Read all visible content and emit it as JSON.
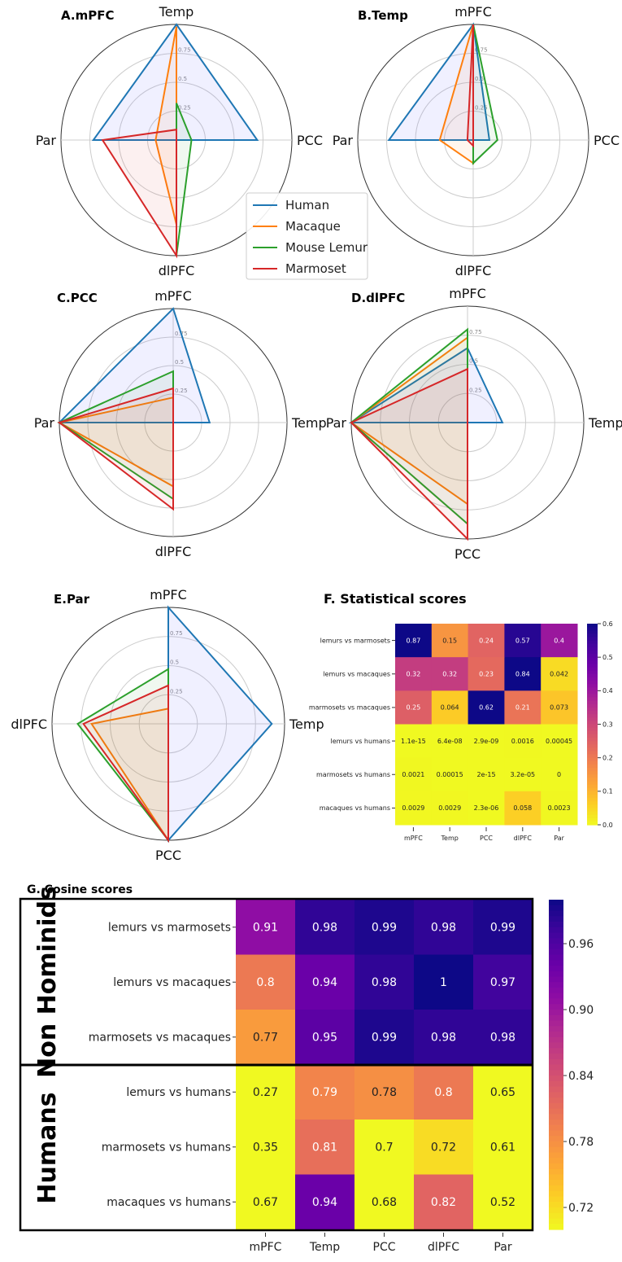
{
  "species": [
    {
      "name": "Human",
      "color": "#1f77b4"
    },
    {
      "name": "Macaque",
      "color": "#ff7f0e"
    },
    {
      "name": "Mouse Lemur",
      "color": "#2ca02c"
    },
    {
      "name": "Marmoset",
      "color": "#d62728"
    }
  ],
  "chart_data": [
    {
      "type": "radar",
      "title": "A.mPFC",
      "axes": [
        "Temp",
        "PCC",
        "dlPFC",
        "Par"
      ],
      "ring_labels": [
        "0.25",
        "0.5",
        "0.75"
      ],
      "range": [
        0,
        1
      ],
      "series": [
        {
          "name": "Human",
          "values": [
            1.0,
            0.7,
            0.0,
            0.72
          ]
        },
        {
          "name": "Macaque",
          "values": [
            0.98,
            0.0,
            0.73,
            0.18
          ]
        },
        {
          "name": "Mouse Lemur",
          "values": [
            0.32,
            0.13,
            1.0,
            0.0
          ]
        },
        {
          "name": "Marmoset",
          "values": [
            0.09,
            0.0,
            1.0,
            0.64
          ]
        }
      ]
    },
    {
      "type": "radar",
      "title": "B.Temp",
      "axes": [
        "mPFC",
        "PCC",
        "dlPFC",
        "Par"
      ],
      "ring_labels": [
        "0.25",
        "0.5",
        "0.75"
      ],
      "range": [
        0,
        1
      ],
      "series": [
        {
          "name": "Human",
          "values": [
            1.0,
            0.14,
            0.0,
            0.73
          ]
        },
        {
          "name": "Macaque",
          "values": [
            1.0,
            0.0,
            0.2,
            0.29
          ]
        },
        {
          "name": "Mouse Lemur",
          "values": [
            1.0,
            0.21,
            0.2,
            0.0
          ]
        },
        {
          "name": "Marmoset",
          "values": [
            1.0,
            0.0,
            0.05,
            0.05
          ]
        }
      ]
    },
    {
      "type": "radar",
      "title": "C.PCC",
      "axes": [
        "mPFC",
        "Temp",
        "dlPFC",
        "Par"
      ],
      "ring_labels": [
        "0.25",
        "0.5",
        "0.75"
      ],
      "range": [
        0,
        1
      ],
      "series": [
        {
          "name": "Human",
          "values": [
            1.0,
            0.32,
            0.0,
            1.0
          ]
        },
        {
          "name": "Macaque",
          "values": [
            0.22,
            0.0,
            0.56,
            1.0
          ]
        },
        {
          "name": "Mouse Lemur",
          "values": [
            0.45,
            0.0,
            0.67,
            1.0
          ]
        },
        {
          "name": "Marmoset",
          "values": [
            0.3,
            0.0,
            0.76,
            1.0
          ]
        }
      ]
    },
    {
      "type": "radar",
      "title": "D.dlPFC",
      "axes": [
        "mPFC",
        "Temp",
        "PCC",
        "Par"
      ],
      "ring_labels": [
        "0.25",
        "0.5",
        "0.75"
      ],
      "range": [
        0,
        1
      ],
      "series": [
        {
          "name": "Human",
          "values": [
            0.64,
            0.3,
            0.0,
            1.0
          ]
        },
        {
          "name": "Macaque",
          "values": [
            0.73,
            0.0,
            0.7,
            1.0
          ]
        },
        {
          "name": "Mouse Lemur",
          "values": [
            0.8,
            0.0,
            0.87,
            1.0
          ]
        },
        {
          "name": "Marmoset",
          "values": [
            0.46,
            0.0,
            1.0,
            1.0
          ]
        }
      ]
    },
    {
      "type": "radar",
      "title": "E.Par",
      "axes": [
        "mPFC",
        "Temp",
        "PCC",
        "dlPFC"
      ],
      "ring_labels": [
        "0.25",
        "0.5",
        "0.75"
      ],
      "range": [
        0,
        1
      ],
      "series": [
        {
          "name": "Human",
          "values": [
            1.0,
            0.89,
            1.0,
            0.0
          ]
        },
        {
          "name": "Macaque",
          "values": [
            0.13,
            0.0,
            1.0,
            0.66
          ]
        },
        {
          "name": "Mouse Lemur",
          "values": [
            0.47,
            0.0,
            1.0,
            0.78
          ]
        },
        {
          "name": "Marmoset",
          "values": [
            0.33,
            0.0,
            1.0,
            0.73
          ]
        }
      ]
    },
    {
      "type": "heatmap",
      "title": "F. Statistical scores",
      "rows": [
        "lemurs vs marmosets",
        "lemurs vs macaques",
        "marmosets vs macaques",
        "lemurs vs humans",
        "marmosets vs humans",
        "macaques vs humans"
      ],
      "columns": [
        "mPFC",
        "Temp",
        "PCC",
        "dlPFC",
        "Par"
      ],
      "values": [
        [
          0.87,
          0.15,
          0.24,
          0.57,
          0.4
        ],
        [
          0.32,
          0.32,
          0.23,
          0.84,
          0.042
        ],
        [
          0.25,
          0.064,
          0.62,
          0.21,
          0.073
        ],
        [
          1.1e-15,
          6.4e-08,
          2.9e-09,
          0.0016,
          0.00045
        ],
        [
          0.0021,
          0.00015,
          2e-15,
          3.2e-05,
          0
        ],
        [
          0.0029,
          0.0029,
          2.3e-06,
          0.058,
          0.0023
        ]
      ],
      "labels": [
        [
          "0.87",
          "0.15",
          "0.24",
          "0.57",
          "0.4"
        ],
        [
          "0.32",
          "0.32",
          "0.23",
          "0.84",
          "0.042"
        ],
        [
          "0.25",
          "0.064",
          "0.62",
          "0.21",
          "0.073"
        ],
        [
          "1.1e-15",
          "6.4e-08",
          "2.9e-09",
          "0.0016",
          "0.00045"
        ],
        [
          "0.0021",
          "0.00015",
          "2e-15",
          "3.2e-05",
          "0"
        ],
        [
          "0.0029",
          "0.0029",
          "2.3e-06",
          "0.058",
          "0.0023"
        ]
      ],
      "colormap": "plasma_r",
      "vrange": [
        0,
        0.6
      ],
      "colorbar_ticks": [
        "0.0",
        "0.1",
        "0.2",
        "0.3",
        "0.4",
        "0.5",
        "0.6"
      ],
      "colorbar_tick_values": [
        0,
        0.1,
        0.2,
        0.3,
        0.4,
        0.5,
        0.6
      ]
    },
    {
      "type": "heatmap",
      "title": "G. Cosine scores",
      "groups": [
        {
          "label": "Non Hominids",
          "rows": [
            0,
            1,
            2
          ]
        },
        {
          "label": "Humans",
          "rows": [
            3,
            4,
            5
          ]
        }
      ],
      "rows": [
        "lemurs vs marmosets",
        "lemurs vs macaques",
        "marmosets vs macaques",
        "lemurs vs humans",
        "marmosets vs humans",
        "macaques vs humans"
      ],
      "columns": [
        "mPFC",
        "Temp",
        "PCC",
        "dlPFC",
        "Par"
      ],
      "values": [
        [
          0.91,
          0.98,
          0.99,
          0.98,
          0.99
        ],
        [
          0.8,
          0.94,
          0.98,
          1,
          0.97
        ],
        [
          0.77,
          0.95,
          0.99,
          0.98,
          0.98
        ],
        [
          0.27,
          0.79,
          0.78,
          0.8,
          0.65
        ],
        [
          0.35,
          0.81,
          0.7,
          0.72,
          0.61
        ],
        [
          0.67,
          0.94,
          0.68,
          0.82,
          0.52
        ]
      ],
      "labels": [
        [
          "0.91",
          "0.98",
          "0.99",
          "0.98",
          "0.99"
        ],
        [
          "0.8",
          "0.94",
          "0.98",
          "1",
          "0.97"
        ],
        [
          "0.77",
          "0.95",
          "0.99",
          "0.98",
          "0.98"
        ],
        [
          "0.27",
          "0.79",
          "0.78",
          "0.8",
          "0.65"
        ],
        [
          "0.35",
          "0.81",
          "0.7",
          "0.72",
          "0.61"
        ],
        [
          "0.67",
          "0.94",
          "0.68",
          "0.82",
          "0.52"
        ]
      ],
      "colormap": "plasma_r",
      "vrange": [
        0.7,
        1.0
      ],
      "colorbar_ticks": [
        "0.72",
        "0.78",
        "0.84",
        "0.90",
        "0.96"
      ],
      "colorbar_tick_values": [
        0.72,
        0.78,
        0.84,
        0.9,
        0.96
      ]
    }
  ]
}
